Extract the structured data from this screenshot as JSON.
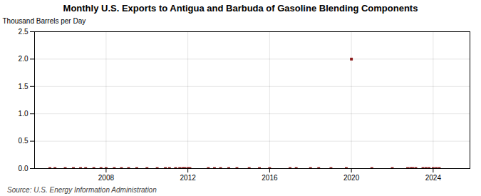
{
  "chart_data": {
    "type": "scatter",
    "title": "Monthly U.S. Exports to Antigua and Barbuda of Gasoline Blending Components",
    "ylabel": "Thousand Barrels per Day",
    "source": "Source: U.S. Energy Information Administration",
    "x": [
      2005.25,
      2005.5,
      2006.0,
      2006.4,
      2006.75,
      2007.0,
      2007.4,
      2007.75,
      2008.0,
      2008.4,
      2008.75,
      2009.1,
      2009.5,
      2010.0,
      2010.5,
      2010.9,
      2011.1,
      2011.4,
      2011.6,
      2011.75,
      2011.85,
      2012.0,
      2012.1,
      2013.0,
      2013.3,
      2013.6,
      2014.0,
      2014.4,
      2015.0,
      2015.5,
      2016.0,
      2017.0,
      2017.3,
      2018.0,
      2018.4,
      2019.0,
      2019.75,
      2020.0,
      2021.0,
      2022.0,
      2022.75,
      2022.9,
      2023.0,
      2023.15,
      2023.5,
      2023.65,
      2023.8,
      2024.0,
      2024.15,
      2024.3
    ],
    "values": [
      0.0,
      0.0,
      0.0,
      0.0,
      0.0,
      0.0,
      0.0,
      0.0,
      0.0,
      0.0,
      0.0,
      0.0,
      0.0,
      0.0,
      0.0,
      0.0,
      0.0,
      0.0,
      0.0,
      0.0,
      0.0,
      0.0,
      0.0,
      0.0,
      0.0,
      0.0,
      0.0,
      0.0,
      0.0,
      0.0,
      0.0,
      0.0,
      0.0,
      0.0,
      0.0,
      0.0,
      0.0,
      2.0,
      0.0,
      0.0,
      0.0,
      0.0,
      0.0,
      0.0,
      0.0,
      0.0,
      0.0,
      0.0,
      0.0,
      0.0
    ],
    "color": "#8b1a1a",
    "marker": "square",
    "xlim": [
      2004.5,
      2025.8
    ],
    "xticks": [
      2008,
      2012,
      2016,
      2020,
      2024
    ],
    "ylim": [
      0.0,
      2.5
    ],
    "yticks": [
      {
        "value": 0.0,
        "label": "0.0"
      },
      0.5,
      {
        "value": 1.0,
        "label": "1.0"
      },
      1.5,
      {
        "value": 2.0,
        "label": "2.0"
      },
      2.5
    ],
    "grid": true
  }
}
